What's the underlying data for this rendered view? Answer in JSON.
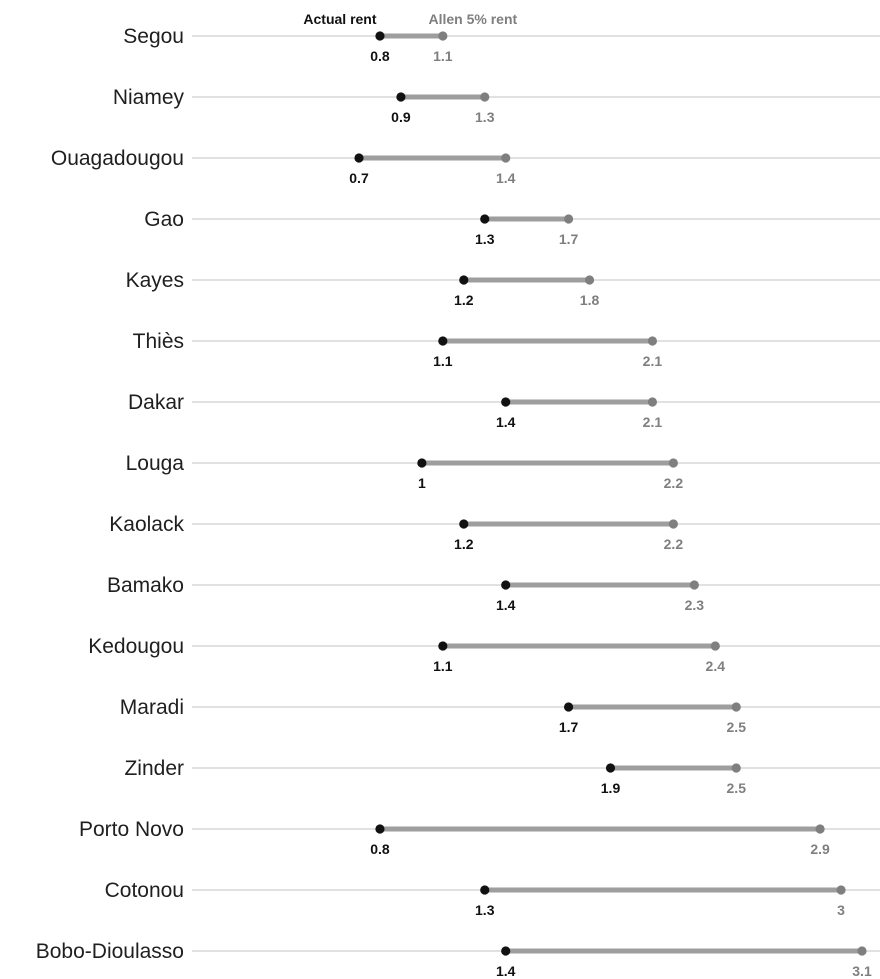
{
  "chart_data": {
    "type": "dumbbell",
    "legend": {
      "actual": "Actual rent",
      "allen": "Allen 5% rent"
    },
    "colors": {
      "actual": "#111111",
      "allen": "#7f7f7f",
      "segment": "#9e9e9e",
      "gridline": "#cfcfcf"
    },
    "xlim": [
      0.7,
      3.1
    ],
    "grid": true,
    "rows": [
      {
        "city": "Segou",
        "actual": 0.8,
        "actual_label": "0.8",
        "allen": 1.1,
        "allen_label": "1.1"
      },
      {
        "city": "Niamey",
        "actual": 0.9,
        "actual_label": "0.9",
        "allen": 1.3,
        "allen_label": "1.3"
      },
      {
        "city": "Ouagadougou",
        "actual": 0.7,
        "actual_label": "0.7",
        "allen": 1.4,
        "allen_label": "1.4"
      },
      {
        "city": "Gao",
        "actual": 1.3,
        "actual_label": "1.3",
        "allen": 1.7,
        "allen_label": "1.7"
      },
      {
        "city": "Kayes",
        "actual": 1.2,
        "actual_label": "1.2",
        "allen": 1.8,
        "allen_label": "1.8"
      },
      {
        "city": "Thiès",
        "actual": 1.1,
        "actual_label": "1.1",
        "allen": 2.1,
        "allen_label": "2.1"
      },
      {
        "city": "Dakar",
        "actual": 1.4,
        "actual_label": "1.4",
        "allen": 2.1,
        "allen_label": "2.1"
      },
      {
        "city": "Louga",
        "actual": 1.0,
        "actual_label": "1",
        "allen": 2.2,
        "allen_label": "2.2"
      },
      {
        "city": "Kaolack",
        "actual": 1.2,
        "actual_label": "1.2",
        "allen": 2.2,
        "allen_label": "2.2"
      },
      {
        "city": "Bamako",
        "actual": 1.4,
        "actual_label": "1.4",
        "allen": 2.3,
        "allen_label": "2.3"
      },
      {
        "city": "Kedougou",
        "actual": 1.1,
        "actual_label": "1.1",
        "allen": 2.4,
        "allen_label": "2.4"
      },
      {
        "city": "Maradi",
        "actual": 1.7,
        "actual_label": "1.7",
        "allen": 2.5,
        "allen_label": "2.5"
      },
      {
        "city": "Zinder",
        "actual": 1.9,
        "actual_label": "1.9",
        "allen": 2.5,
        "allen_label": "2.5"
      },
      {
        "city": "Porto Novo",
        "actual": 0.8,
        "actual_label": "0.8",
        "allen": 2.9,
        "allen_label": "2.9"
      },
      {
        "city": "Cotonou",
        "actual": 1.3,
        "actual_label": "1.3",
        "allen": 3.0,
        "allen_label": "3"
      },
      {
        "city": "Bobo-Dioulasso",
        "actual": 1.4,
        "actual_label": "1.4",
        "allen": 3.1,
        "allen_label": "3.1"
      }
    ]
  }
}
